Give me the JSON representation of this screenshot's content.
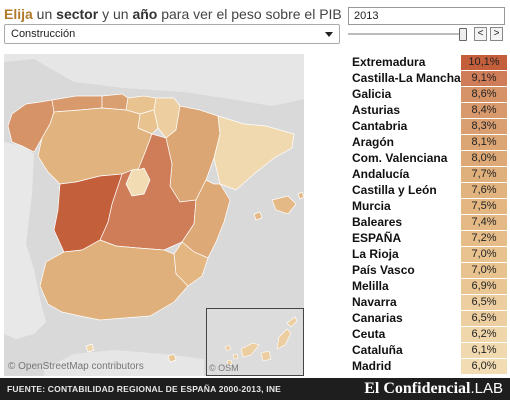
{
  "heading": {
    "part1": "Elija",
    "part2": " un ",
    "part3": "sector",
    "part4": " y un ",
    "part5": "año",
    "part6": " para ver el peso sobre el PIB"
  },
  "sector_select": {
    "value": "Construcción"
  },
  "year_input": {
    "value": "2013"
  },
  "nav": {
    "prev": "<",
    "next": ">"
  },
  "map": {
    "attribution": "© OpenStreetMap contributors",
    "canary_attribution": "© OSM"
  },
  "ranking": [
    {
      "name": "Extremadura",
      "value": "10,1%",
      "color": "#c45f3c"
    },
    {
      "name": "Castilla-La Mancha",
      "value": "9,1%",
      "color": "#cf7d59"
    },
    {
      "name": "Galicia",
      "value": "8,6%",
      "color": "#d69367"
    },
    {
      "name": "Asturias",
      "value": "8,4%",
      "color": "#d89a6d"
    },
    {
      "name": "Cantabria",
      "value": "8,3%",
      "color": "#da9f71"
    },
    {
      "name": "Aragón",
      "value": "8,1%",
      "color": "#dca674"
    },
    {
      "name": "Com. Valenciana",
      "value": "8,0%",
      "color": "#ddaa77"
    },
    {
      "name": "Andalucía",
      "value": "7,7%",
      "color": "#e0b07c"
    },
    {
      "name": "Castilla y León",
      "value": "7,6%",
      "color": "#e1b37f"
    },
    {
      "name": "Murcia",
      "value": "7,5%",
      "color": "#e3b682"
    },
    {
      "name": "Baleares",
      "value": "7,4%",
      "color": "#e4b986"
    },
    {
      "name": "ESPAÑA",
      "value": "7,2%",
      "color": "#e6bd89"
    },
    {
      "name": "La Rioja",
      "value": "7,0%",
      "color": "#e8c28f"
    },
    {
      "name": "País Vasco",
      "value": "7,0%",
      "color": "#e8c28f"
    },
    {
      "name": "Melilla",
      "value": "6,9%",
      "color": "#eac694"
    },
    {
      "name": "Navarra",
      "value": "6,5%",
      "color": "#edcea0"
    },
    {
      "name": "Canarias",
      "value": "6,5%",
      "color": "#edcea0"
    },
    {
      "name": "Ceuta",
      "value": "6,2%",
      "color": "#f0d6ab"
    },
    {
      "name": "Cataluña",
      "value": "6,1%",
      "color": "#f1d9af"
    },
    {
      "name": "Madrid",
      "value": "6,0%",
      "color": "#f2dcb4"
    }
  ],
  "footer": {
    "source": "FUENTE: CONTABILIDAD REGIONAL DE ESPAÑA 2000-2013, INE",
    "brand": "El Confidencial",
    "brand_suffix": ".LAB"
  }
}
